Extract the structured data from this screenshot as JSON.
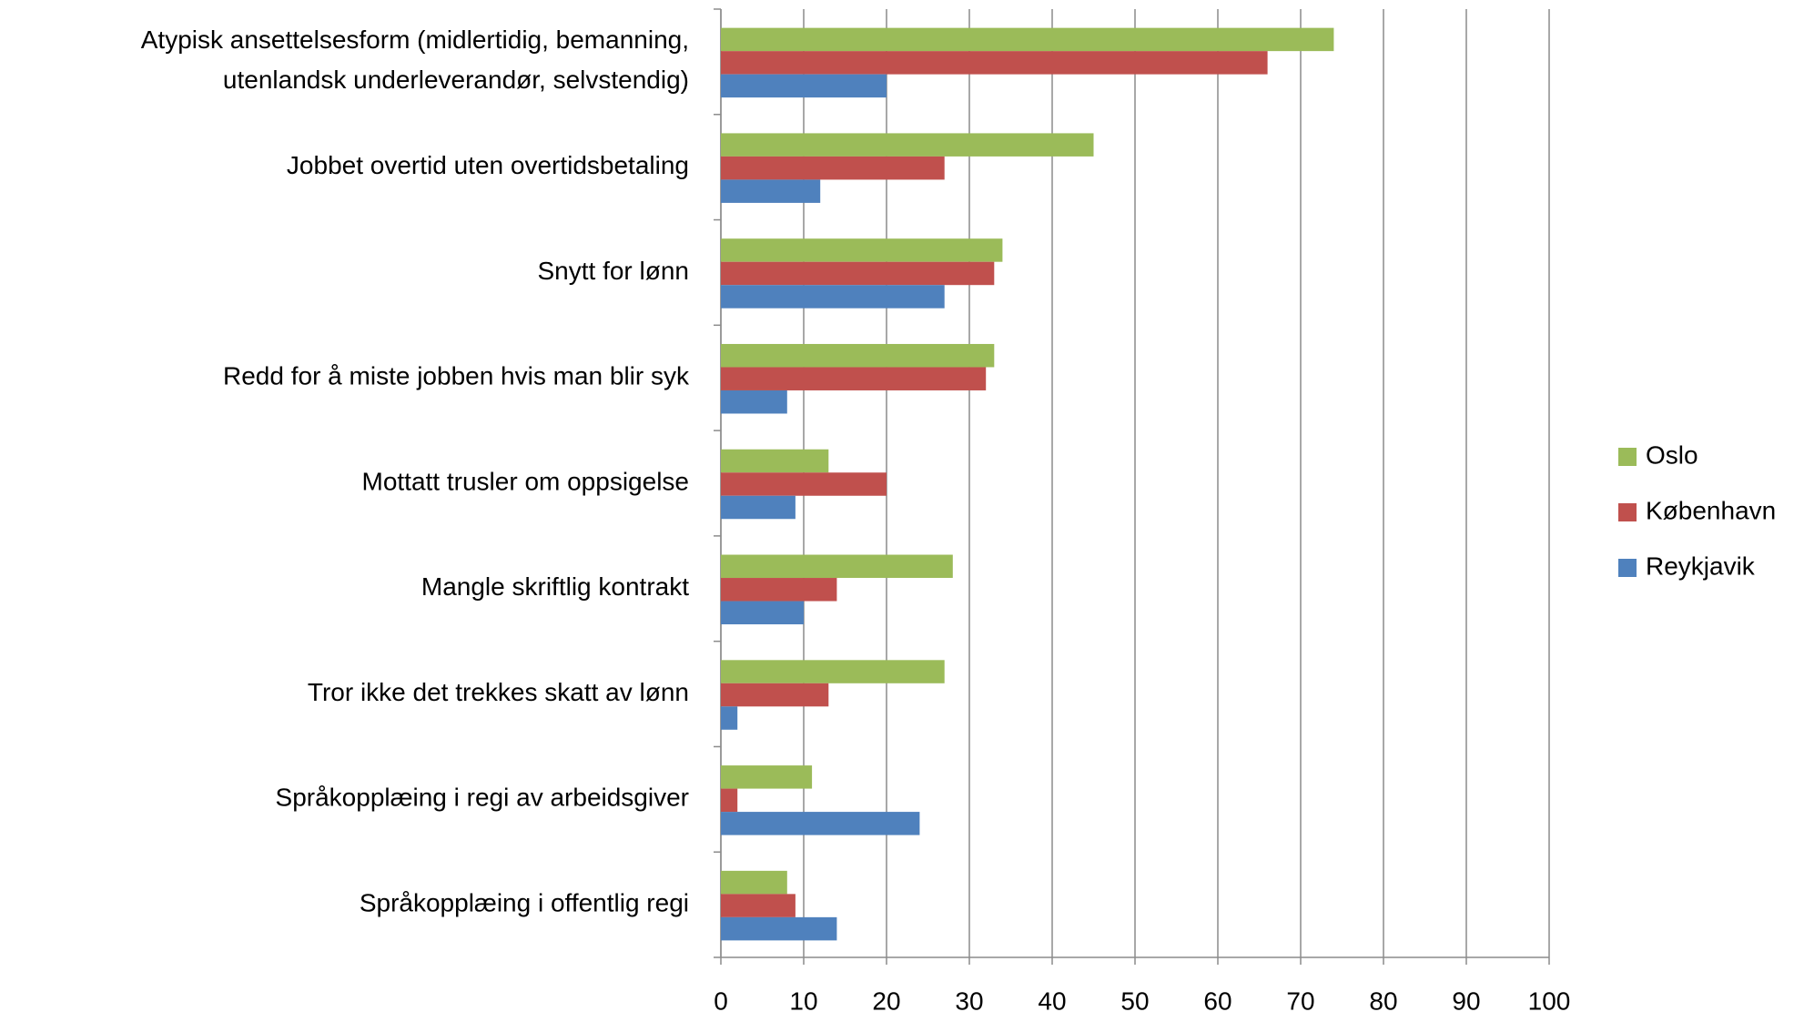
{
  "chart_data": {
    "type": "bar",
    "orientation": "horizontal",
    "categories": [
      "Atypisk ansettelsesform (midlertidig, bemanning,\nutenlandsk underleverandør, selvstendig)",
      "Jobbet overtid uten overtidsbetaling",
      "Snytt for lønn",
      "Redd for å miste jobben hvis man blir syk",
      "Mottatt trusler om oppsigelse",
      "Mangle skriftlig kontrakt",
      "Tror ikke det trekkes skatt av lønn",
      "Språkopplæing i regi av arbeidsgiver",
      "Språkopplæing i offentlig regi"
    ],
    "series": [
      {
        "name": "Oslo",
        "color": "#9bbb59",
        "values": [
          74,
          45,
          34,
          33,
          13,
          28,
          27,
          11,
          8
        ]
      },
      {
        "name": "København",
        "color": "#c0504d",
        "values": [
          66,
          27,
          33,
          32,
          20,
          14,
          13,
          2,
          9
        ]
      },
      {
        "name": "Reykjavik",
        "color": "#4f81bd",
        "values": [
          20,
          12,
          27,
          8,
          9,
          10,
          2,
          24,
          14
        ]
      }
    ],
    "xlim": [
      0,
      100
    ],
    "xticks": [
      0,
      10,
      20,
      30,
      40,
      50,
      60,
      70,
      80,
      90,
      100
    ],
    "grid": true,
    "legend": "right"
  }
}
